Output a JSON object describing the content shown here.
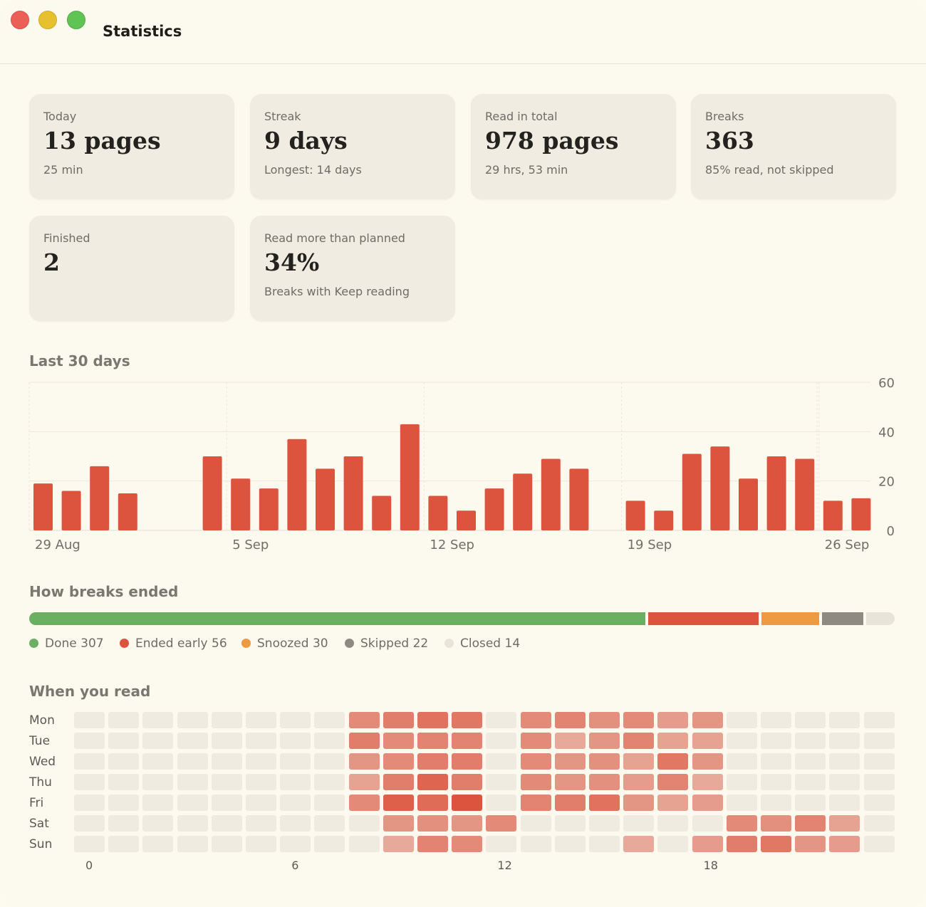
{
  "window": {
    "title": "Statistics"
  },
  "cards": [
    {
      "label": "Today",
      "value": "13 pages",
      "sub": "25 min"
    },
    {
      "label": "Streak",
      "value": "9 days",
      "sub": "Longest: 14 days"
    },
    {
      "label": "Read in total",
      "value": "978 pages",
      "sub": "29 hrs, 53 min"
    },
    {
      "label": "Breaks",
      "value": "363",
      "sub": "85% read, not skipped"
    },
    {
      "label": "Finished",
      "value": "2",
      "sub": ""
    },
    {
      "label": "Read more than planned",
      "value": "34%",
      "sub": "Breaks with Keep reading"
    }
  ],
  "sections": {
    "last30": "Last 30 days",
    "breaks": "How breaks ended",
    "when": "When you read"
  },
  "chart_data": {
    "type": "bar",
    "title": "Last 30 days",
    "categories": [
      "29 Aug",
      "30 Aug",
      "31 Aug",
      "1 Sep",
      "2 Sep",
      "3 Sep",
      "4 Sep",
      "5 Sep",
      "6 Sep",
      "7 Sep",
      "8 Sep",
      "9 Sep",
      "10 Sep",
      "11 Sep",
      "12 Sep",
      "13 Sep",
      "14 Sep",
      "15 Sep",
      "16 Sep",
      "17 Sep",
      "18 Sep",
      "19 Sep",
      "20 Sep",
      "21 Sep",
      "22 Sep",
      "23 Sep",
      "24 Sep",
      "25 Sep",
      "26 Sep",
      "27 Sep"
    ],
    "values": [
      19,
      16,
      26,
      15,
      0,
      0,
      30,
      21,
      17,
      37,
      25,
      30,
      14,
      43,
      14,
      8,
      17,
      23,
      29,
      25,
      0,
      12,
      8,
      31,
      34,
      21,
      30,
      29,
      12,
      13
    ],
    "x_tick_labels": [
      "29 Aug",
      "5 Sep",
      "12 Sep",
      "19 Sep",
      "26 Sep"
    ],
    "y_ticks": [
      0,
      20,
      40,
      60
    ],
    "ylim": [
      0,
      60
    ],
    "grid": true,
    "bar_color": "#dc543d"
  },
  "breaks": {
    "segments": [
      {
        "name": "Done",
        "count": 307,
        "color": "#6aaf62",
        "label": "Done 307"
      },
      {
        "name": "Ended early",
        "count": 56,
        "color": "#dc543d",
        "label": "Ended early 56"
      },
      {
        "name": "Snoozed",
        "count": 30,
        "color": "#ee9a40",
        "label": "Snoozed 30"
      },
      {
        "name": "Skipped",
        "count": 22,
        "color": "#8f8a81",
        "label": "Skipped 22"
      },
      {
        "name": "Closed",
        "count": 14,
        "color": "#e8e4da",
        "label": "Closed 14"
      }
    ]
  },
  "heatmap": {
    "days": [
      "Mon",
      "Tue",
      "Wed",
      "Thu",
      "Fri",
      "Sat",
      "Sun"
    ],
    "hours_shown": [
      "0",
      "6",
      "12",
      "18"
    ],
    "empty_color": "#efebe1",
    "hot_color": "#dc543d",
    "levels": [
      [
        0,
        0,
        0,
        0,
        0,
        0,
        0,
        0,
        0.55,
        0.65,
        0.75,
        0.7,
        0,
        0.55,
        0.6,
        0.5,
        0.55,
        0.4,
        0.45,
        0,
        0,
        0,
        0,
        0
      ],
      [
        0,
        0,
        0,
        0,
        0,
        0,
        0,
        0,
        0.65,
        0.55,
        0.6,
        0.6,
        0,
        0.55,
        0.3,
        0.45,
        0.6,
        0.35,
        0.35,
        0,
        0,
        0,
        0,
        0
      ],
      [
        0,
        0,
        0,
        0,
        0,
        0,
        0,
        0,
        0.45,
        0.55,
        0.65,
        0.65,
        0,
        0.55,
        0.45,
        0.5,
        0.35,
        0.7,
        0.45,
        0,
        0,
        0,
        0,
        0
      ],
      [
        0,
        0,
        0,
        0,
        0,
        0,
        0,
        0,
        0.35,
        0.65,
        0.85,
        0.65,
        0,
        0.55,
        0.45,
        0.5,
        0.4,
        0.6,
        0.3,
        0,
        0,
        0,
        0,
        0
      ],
      [
        0,
        0,
        0,
        0,
        0,
        0,
        0,
        0,
        0.55,
        0.9,
        0.8,
        1.0,
        0,
        0.6,
        0.65,
        0.75,
        0.45,
        0.35,
        0.4,
        0,
        0,
        0,
        0,
        0
      ],
      [
        0,
        0,
        0,
        0,
        0,
        0,
        0,
        0,
        0,
        0.45,
        0.5,
        0.45,
        0.55,
        0,
        0,
        0,
        0,
        0,
        0,
        0.55,
        0.5,
        0.6,
        0.35,
        0
      ],
      [
        0,
        0,
        0,
        0,
        0,
        0,
        0,
        0,
        0,
        0.3,
        0.6,
        0.55,
        0,
        0,
        0,
        0,
        0.3,
        0,
        0.4,
        0.65,
        0.7,
        0.45,
        0.4,
        0
      ]
    ]
  }
}
